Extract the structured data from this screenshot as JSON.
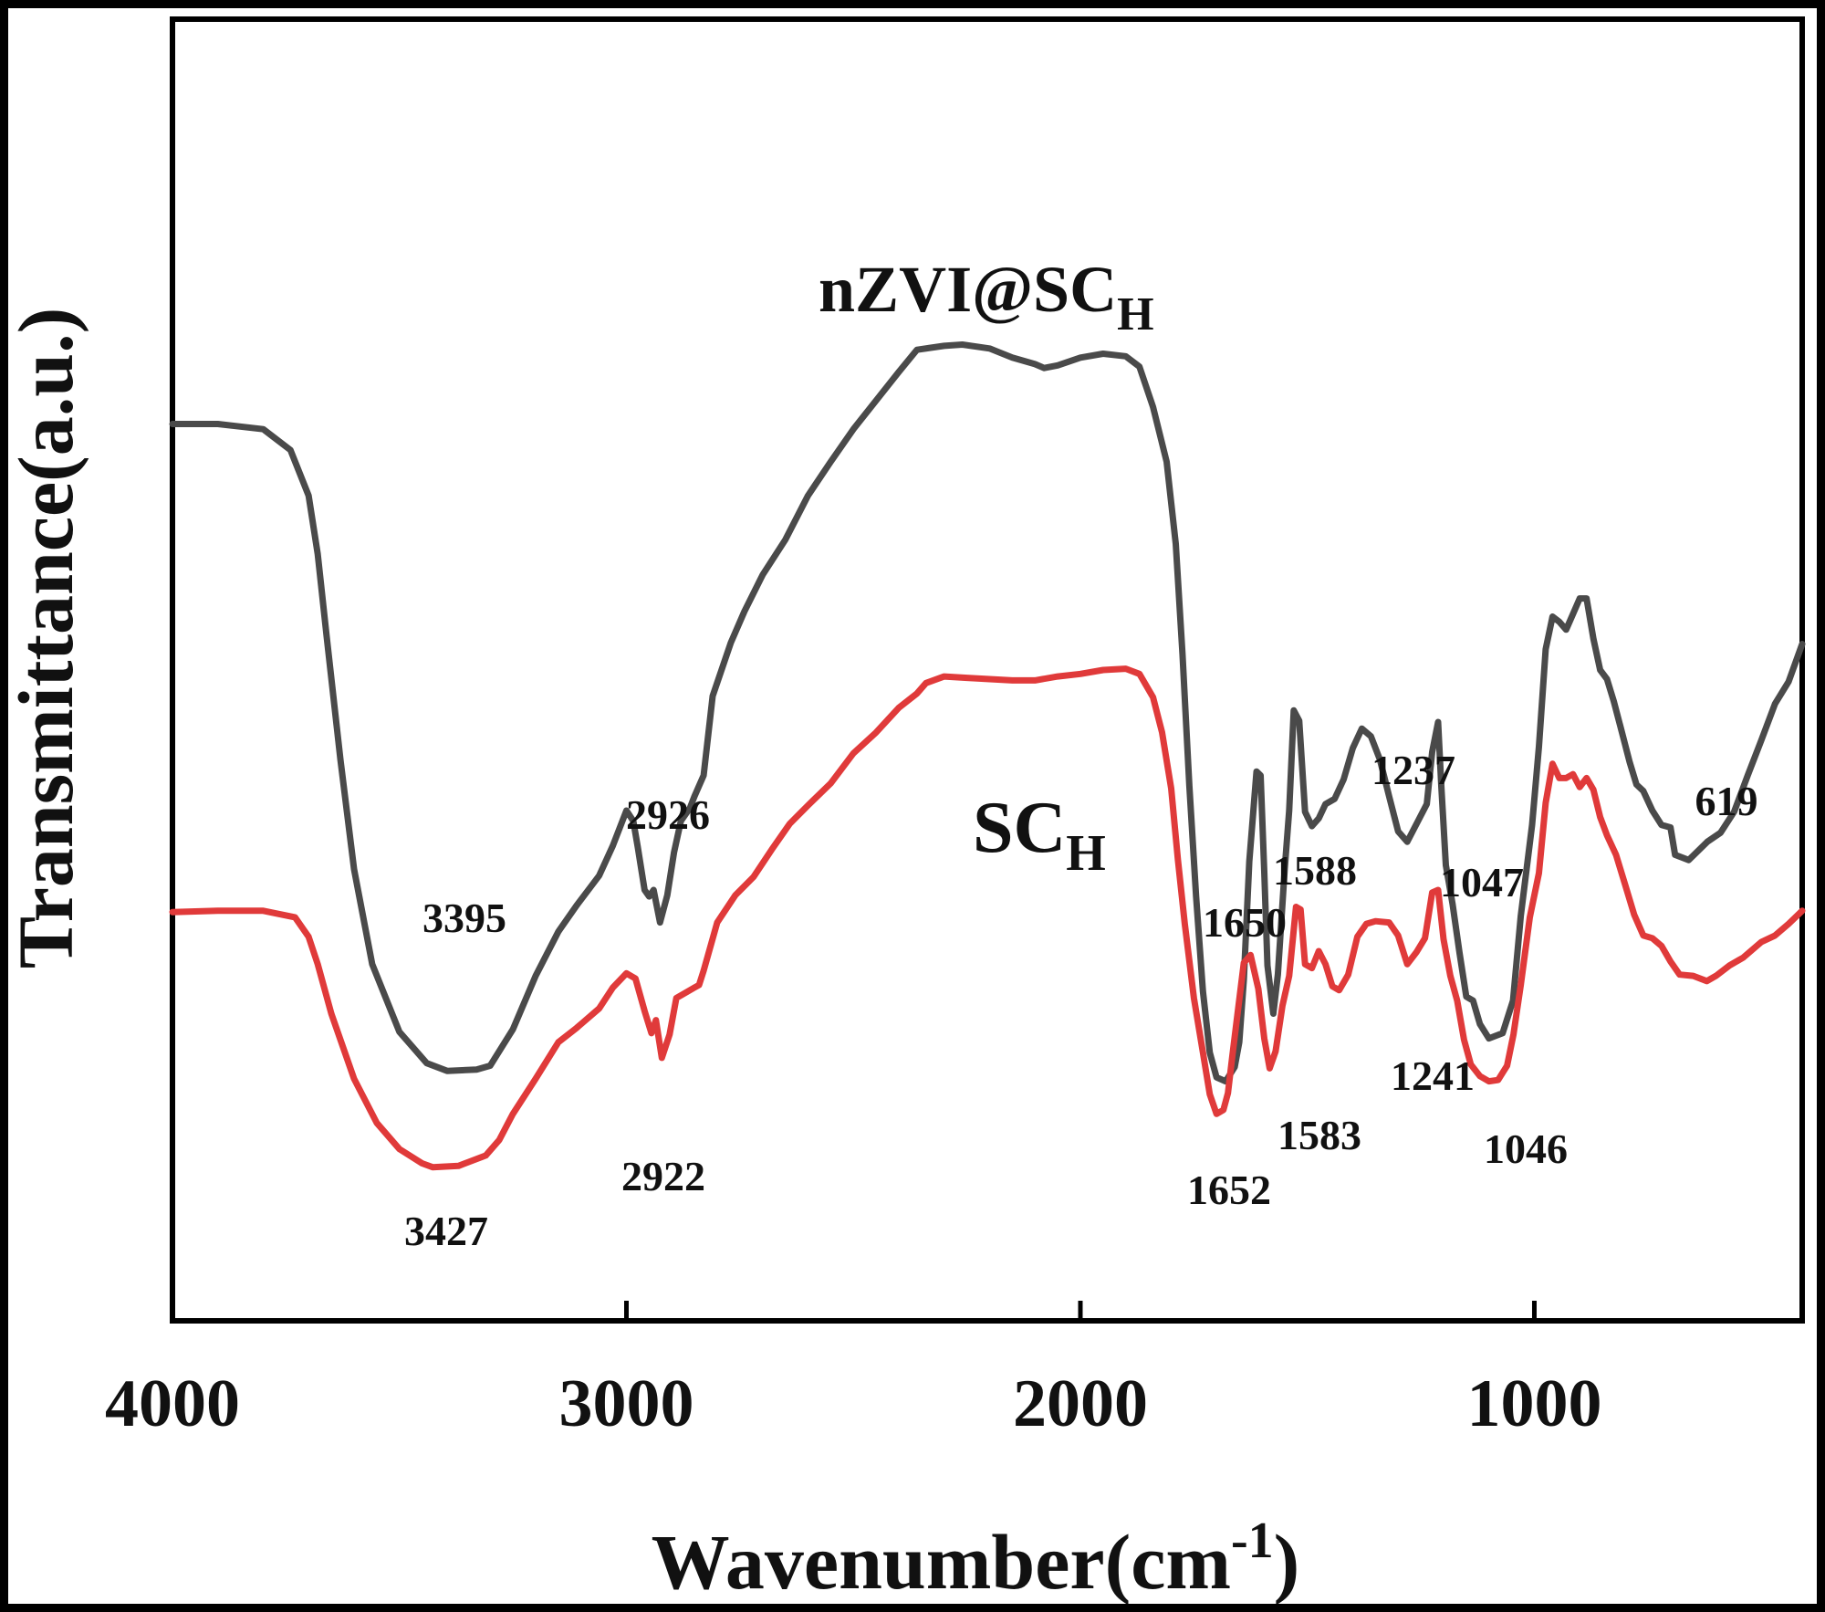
{
  "chart_data": {
    "type": "line",
    "xlabel": "Wavenumber(cm",
    "xlabel_sup": "-1",
    "xlabel_close": ")",
    "ylabel": "Transmittance(a.u.)",
    "xlim": [
      4000,
      410
    ],
    "ylim": [
      0,
      100
    ],
    "x_ticks": [
      4000,
      3000,
      2000,
      1000
    ],
    "y_ticks": [],
    "grid": false,
    "legend": "none",
    "series": [
      {
        "name": "nZVI@SC",
        "name_sub": "H",
        "color": "#4a4a4a",
        "points": [
          [
            4000,
            68.9
          ],
          [
            3900,
            68.9
          ],
          [
            3800,
            68.5
          ],
          [
            3740,
            66.9
          ],
          [
            3700,
            63.4
          ],
          [
            3680,
            58.9
          ],
          [
            3660,
            52.5
          ],
          [
            3630,
            43.1
          ],
          [
            3600,
            34.7
          ],
          [
            3560,
            27.4
          ],
          [
            3500,
            22.2
          ],
          [
            3440,
            19.8
          ],
          [
            3395,
            19.2
          ],
          [
            3330,
            19.3
          ],
          [
            3300,
            19.6
          ],
          [
            3250,
            22.4
          ],
          [
            3200,
            26.5
          ],
          [
            3150,
            29.9
          ],
          [
            3110,
            31.9
          ],
          [
            3060,
            34.2
          ],
          [
            3030,
            36.5
          ],
          [
            3000,
            39.2
          ],
          [
            2985,
            38.4
          ],
          [
            2975,
            36.4
          ],
          [
            2960,
            33.1
          ],
          [
            2950,
            32.6
          ],
          [
            2940,
            33.1
          ],
          [
            2926,
            30.6
          ],
          [
            2910,
            32.7
          ],
          [
            2895,
            36.0
          ],
          [
            2880,
            38.4
          ],
          [
            2860,
            39.4
          ],
          [
            2850,
            40.3
          ],
          [
            2830,
            41.9
          ],
          [
            2810,
            48.0
          ],
          [
            2770,
            52.1
          ],
          [
            2740,
            54.5
          ],
          [
            2700,
            57.3
          ],
          [
            2650,
            60.0
          ],
          [
            2600,
            63.4
          ],
          [
            2550,
            66.0
          ],
          [
            2500,
            68.5
          ],
          [
            2450,
            70.7
          ],
          [
            2400,
            72.9
          ],
          [
            2360,
            74.6
          ],
          [
            2300,
            74.9
          ],
          [
            2260,
            75.0
          ],
          [
            2200,
            74.7
          ],
          [
            2150,
            74.0
          ],
          [
            2100,
            73.5
          ],
          [
            2080,
            73.2
          ],
          [
            2050,
            73.4
          ],
          [
            2000,
            74.0
          ],
          [
            1950,
            74.3
          ],
          [
            1900,
            74.1
          ],
          [
            1870,
            73.3
          ],
          [
            1840,
            70.2
          ],
          [
            1810,
            66.0
          ],
          [
            1790,
            59.7
          ],
          [
            1775,
            51.2
          ],
          [
            1760,
            41.1
          ],
          [
            1745,
            32.6
          ],
          [
            1730,
            25.3
          ],
          [
            1715,
            20.6
          ],
          [
            1700,
            18.7
          ],
          [
            1680,
            18.4
          ],
          [
            1660,
            19.5
          ],
          [
            1650,
            21.4
          ],
          [
            1640,
            26.2
          ],
          [
            1628,
            35.3
          ],
          [
            1612,
            42.2
          ],
          [
            1603,
            41.9
          ],
          [
            1595,
            34.5
          ],
          [
            1588,
            27.3
          ],
          [
            1575,
            23.6
          ],
          [
            1565,
            26.6
          ],
          [
            1550,
            34.7
          ],
          [
            1540,
            39.2
          ],
          [
            1530,
            46.9
          ],
          [
            1518,
            46.1
          ],
          [
            1505,
            39.1
          ],
          [
            1490,
            38.0
          ],
          [
            1475,
            38.6
          ],
          [
            1460,
            39.7
          ],
          [
            1440,
            40.1
          ],
          [
            1420,
            41.6
          ],
          [
            1400,
            44.0
          ],
          [
            1380,
            45.5
          ],
          [
            1360,
            44.9
          ],
          [
            1340,
            43.1
          ],
          [
            1320,
            40.3
          ],
          [
            1300,
            37.6
          ],
          [
            1280,
            36.8
          ],
          [
            1237,
            39.7
          ],
          [
            1225,
            43.7
          ],
          [
            1212,
            46.0
          ],
          [
            1205,
            41.1
          ],
          [
            1195,
            35.0
          ],
          [
            1180,
            32.0
          ],
          [
            1165,
            28.3
          ],
          [
            1150,
            24.9
          ],
          [
            1135,
            24.6
          ],
          [
            1120,
            22.8
          ],
          [
            1100,
            21.7
          ],
          [
            1070,
            22.1
          ],
          [
            1047,
            24.6
          ],
          [
            1030,
            31.1
          ],
          [
            1005,
            38.1
          ],
          [
            990,
            44.1
          ],
          [
            975,
            51.6
          ],
          [
            960,
            54.1
          ],
          [
            945,
            53.7
          ],
          [
            930,
            53.1
          ],
          [
            915,
            54.3
          ],
          [
            900,
            55.5
          ],
          [
            885,
            55.5
          ],
          [
            870,
            52.4
          ],
          [
            855,
            50.0
          ],
          [
            840,
            49.3
          ],
          [
            825,
            47.6
          ],
          [
            810,
            45.6
          ],
          [
            790,
            42.9
          ],
          [
            775,
            41.2
          ],
          [
            760,
            40.7
          ],
          [
            740,
            39.2
          ],
          [
            720,
            38.1
          ],
          [
            700,
            37.9
          ],
          [
            690,
            35.8
          ],
          [
            660,
            35.4
          ],
          [
            619,
            36.8
          ],
          [
            590,
            37.5
          ],
          [
            560,
            39.1
          ],
          [
            530,
            41.9
          ],
          [
            500,
            44.6
          ],
          [
            470,
            47.4
          ],
          [
            440,
            49.1
          ],
          [
            410,
            52.0
          ]
        ]
      },
      {
        "name": "SC",
        "name_sub": "H",
        "color": "#e03a3a",
        "points": [
          [
            4000,
            31.4
          ],
          [
            3900,
            31.5
          ],
          [
            3800,
            31.5
          ],
          [
            3730,
            31.0
          ],
          [
            3700,
            29.5
          ],
          [
            3680,
            27.4
          ],
          [
            3650,
            23.6
          ],
          [
            3600,
            18.6
          ],
          [
            3550,
            15.2
          ],
          [
            3500,
            13.2
          ],
          [
            3450,
            12.1
          ],
          [
            3427,
            11.8
          ],
          [
            3370,
            11.9
          ],
          [
            3310,
            12.7
          ],
          [
            3280,
            13.9
          ],
          [
            3250,
            15.9
          ],
          [
            3200,
            18.6
          ],
          [
            3150,
            21.4
          ],
          [
            3110,
            22.5
          ],
          [
            3060,
            24.0
          ],
          [
            3030,
            25.6
          ],
          [
            3000,
            26.7
          ],
          [
            2980,
            26.3
          ],
          [
            2960,
            23.8
          ],
          [
            2945,
            22.1
          ],
          [
            2935,
            23.1
          ],
          [
            2922,
            20.2
          ],
          [
            2905,
            22.0
          ],
          [
            2890,
            24.8
          ],
          [
            2870,
            25.2
          ],
          [
            2850,
            25.6
          ],
          [
            2840,
            25.8
          ],
          [
            2830,
            26.9
          ],
          [
            2800,
            30.6
          ],
          [
            2760,
            32.7
          ],
          [
            2720,
            34.1
          ],
          [
            2680,
            36.2
          ],
          [
            2640,
            38.2
          ],
          [
            2600,
            39.6
          ],
          [
            2550,
            41.3
          ],
          [
            2500,
            43.6
          ],
          [
            2450,
            45.2
          ],
          [
            2400,
            47.1
          ],
          [
            2360,
            48.2
          ],
          [
            2340,
            49.0
          ],
          [
            2300,
            49.5
          ],
          [
            2250,
            49.4
          ],
          [
            2200,
            49.3
          ],
          [
            2150,
            49.2
          ],
          [
            2100,
            49.2
          ],
          [
            2050,
            49.5
          ],
          [
            2000,
            49.7
          ],
          [
            1950,
            50.0
          ],
          [
            1900,
            50.1
          ],
          [
            1870,
            49.7
          ],
          [
            1840,
            47.9
          ],
          [
            1820,
            45.2
          ],
          [
            1800,
            40.9
          ],
          [
            1785,
            35.4
          ],
          [
            1770,
            30.5
          ],
          [
            1750,
            24.8
          ],
          [
            1730,
            20.6
          ],
          [
            1715,
            17.4
          ],
          [
            1700,
            15.9
          ],
          [
            1685,
            16.2
          ],
          [
            1675,
            17.5
          ],
          [
            1665,
            20.4
          ],
          [
            1652,
            24.1
          ],
          [
            1640,
            27.5
          ],
          [
            1625,
            28.1
          ],
          [
            1608,
            25.5
          ],
          [
            1595,
            21.7
          ],
          [
            1583,
            19.4
          ],
          [
            1570,
            20.7
          ],
          [
            1555,
            24.2
          ],
          [
            1540,
            26.5
          ],
          [
            1525,
            31.8
          ],
          [
            1515,
            31.6
          ],
          [
            1505,
            27.4
          ],
          [
            1490,
            27.1
          ],
          [
            1475,
            28.4
          ],
          [
            1460,
            27.4
          ],
          [
            1445,
            25.7
          ],
          [
            1430,
            25.4
          ],
          [
            1410,
            26.6
          ],
          [
            1390,
            29.5
          ],
          [
            1370,
            30.5
          ],
          [
            1350,
            30.7
          ],
          [
            1320,
            30.6
          ],
          [
            1300,
            29.6
          ],
          [
            1280,
            27.4
          ],
          [
            1260,
            28.3
          ],
          [
            1241,
            29.4
          ],
          [
            1225,
            32.9
          ],
          [
            1212,
            33.1
          ],
          [
            1200,
            29.3
          ],
          [
            1185,
            26.5
          ],
          [
            1170,
            24.6
          ],
          [
            1155,
            21.6
          ],
          [
            1140,
            19.7
          ],
          [
            1120,
            18.8
          ],
          [
            1100,
            18.4
          ],
          [
            1080,
            18.5
          ],
          [
            1060,
            19.6
          ],
          [
            1046,
            22.0
          ],
          [
            1030,
            25.8
          ],
          [
            1010,
            31.0
          ],
          [
            990,
            34.4
          ],
          [
            975,
            39.8
          ],
          [
            960,
            42.8
          ],
          [
            945,
            41.7
          ],
          [
            930,
            41.7
          ],
          [
            915,
            42.0
          ],
          [
            900,
            41.0
          ],
          [
            885,
            41.7
          ],
          [
            870,
            40.8
          ],
          [
            855,
            38.7
          ],
          [
            840,
            37.3
          ],
          [
            820,
            35.8
          ],
          [
            800,
            33.5
          ],
          [
            780,
            31.2
          ],
          [
            760,
            29.6
          ],
          [
            740,
            29.4
          ],
          [
            720,
            28.8
          ],
          [
            700,
            27.6
          ],
          [
            680,
            26.6
          ],
          [
            650,
            26.5
          ],
          [
            620,
            26.1
          ],
          [
            600,
            26.5
          ],
          [
            570,
            27.3
          ],
          [
            540,
            27.9
          ],
          [
            500,
            29.1
          ],
          [
            470,
            29.6
          ],
          [
            440,
            30.5
          ],
          [
            410,
            31.5
          ]
        ]
      }
    ],
    "annotations": [
      {
        "text": "3395",
        "series": 0
      },
      {
        "text": "2926",
        "series": 0
      },
      {
        "text": "1650",
        "series": 0
      },
      {
        "text": "1588",
        "series": 0
      },
      {
        "text": "1237",
        "series": 0
      },
      {
        "text": "1047",
        "series": 0
      },
      {
        "text": "619",
        "series": 0
      },
      {
        "text": "3427",
        "series": 1
      },
      {
        "text": "2922",
        "series": 1
      },
      {
        "text": "1652",
        "series": 1
      },
      {
        "text": "1583",
        "series": 1
      },
      {
        "text": "1241",
        "series": 1
      },
      {
        "text": "1046",
        "series": 1
      }
    ]
  }
}
